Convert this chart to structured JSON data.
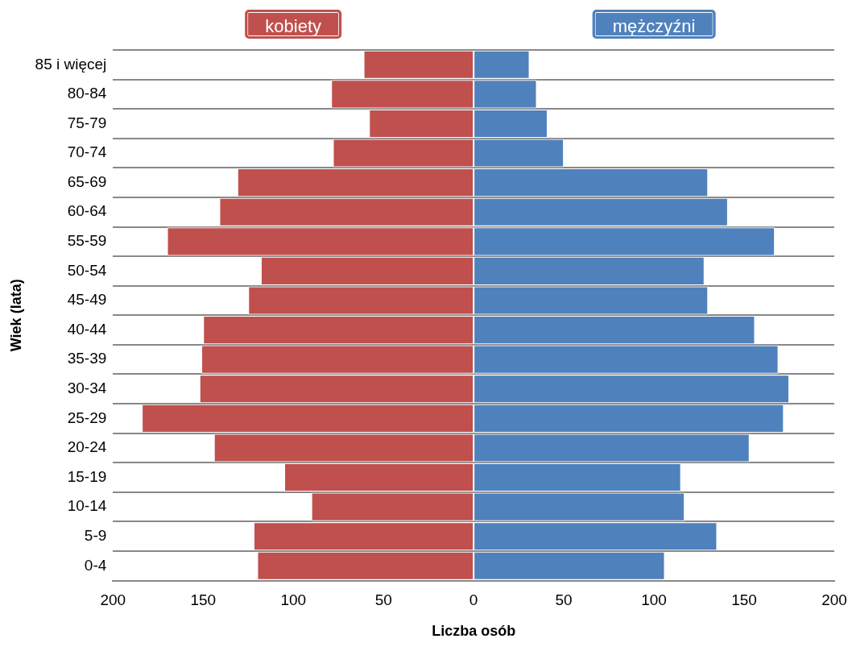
{
  "chart_data": {
    "type": "bar",
    "orientation": "horizontal",
    "stacked": true,
    "xlabel": "Liczba osób",
    "ylabel": "Wiek (lata)",
    "categories": [
      "85 i więcej",
      "80-84",
      "75-79",
      "70-74",
      "65-69",
      "60-64",
      "55-59",
      "50-54",
      "45-49",
      "40-44",
      "35-39",
      "30-34",
      "25-29",
      "20-24",
      "15-19",
      "10-14",
      "5-9",
      "0-4"
    ],
    "series": [
      {
        "name": "kobiety",
        "color": "#c0504d",
        "values": [
          -61,
          -79,
          -58,
          -78,
          -131,
          -141,
          -170,
          -118,
          -125,
          -150,
          -151,
          -152,
          -184,
          -144,
          -105,
          -90,
          -122,
          -120
        ]
      },
      {
        "name": "mężczyźni",
        "color": "#4f81bd",
        "values": [
          31,
          35,
          41,
          50,
          130,
          141,
          167,
          128,
          130,
          156,
          169,
          175,
          172,
          153,
          115,
          117,
          135,
          106
        ]
      }
    ],
    "xlim": [
      -200,
      200
    ],
    "xticks": [
      {
        "value": -200,
        "label": "200"
      },
      {
        "value": -150,
        "label": "150"
      },
      {
        "value": -100,
        "label": "100"
      },
      {
        "value": -50,
        "label": "50"
      },
      0,
      50,
      100,
      150,
      200
    ],
    "grid": "y",
    "legend": "top"
  }
}
